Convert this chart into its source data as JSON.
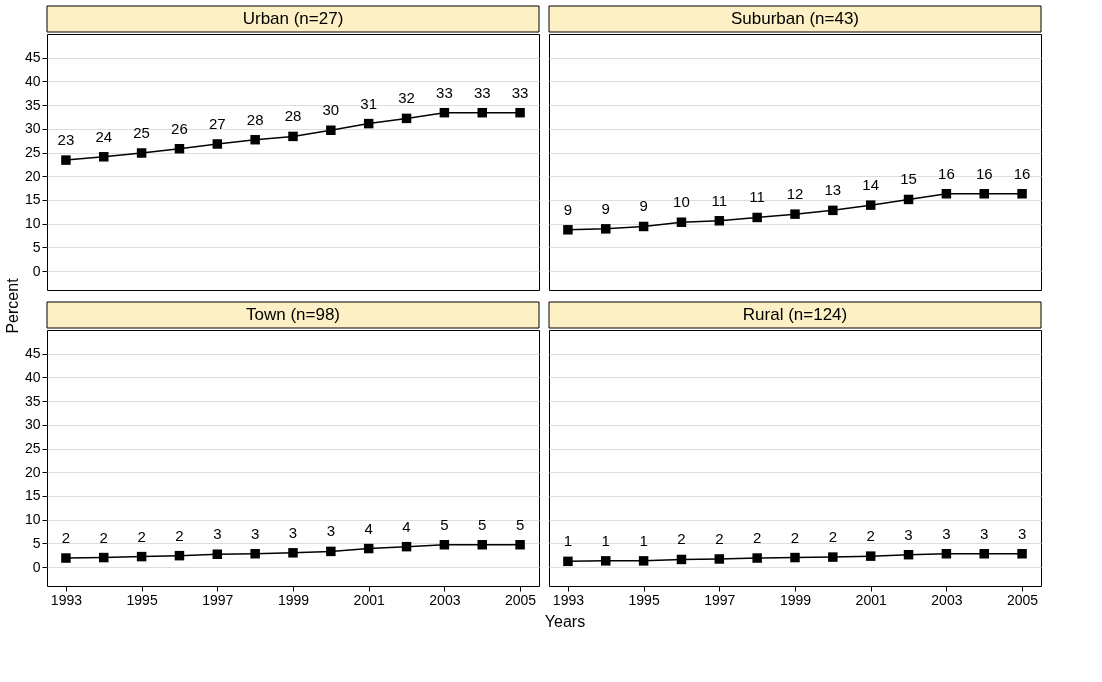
{
  "chart_data": [
    {
      "type": "line",
      "title": "Urban (n=27)",
      "ylabel": "Percent",
      "x": [
        1993,
        1994,
        1995,
        1996,
        1997,
        1998,
        1999,
        2000,
        2001,
        2002,
        2003,
        2004,
        2005
      ],
      "values": [
        23.4,
        24.1,
        24.9,
        25.8,
        26.8,
        27.7,
        28.4,
        29.7,
        31.1,
        32.2,
        33.4,
        33.4,
        33.4
      ],
      "value_labels": [
        "23",
        "24",
        "25",
        "26",
        "27",
        "28",
        "28",
        "30",
        "31",
        "32",
        "33",
        "33",
        "33"
      ],
      "color": "#000000",
      "marker": "square",
      "xlim": [
        1992.5,
        2005.5
      ],
      "ylim": [
        -4,
        50
      ],
      "xticks": [
        1993,
        1995,
        1997,
        1999,
        2001,
        2003,
        2005
      ],
      "yticks": [
        0,
        5,
        10,
        15,
        20,
        25,
        30,
        35,
        40,
        45
      ],
      "grid": "y",
      "tick_labels": "y"
    },
    {
      "type": "line",
      "title": "Suburban (n=43)",
      "x": [
        1993,
        1994,
        1995,
        1996,
        1997,
        1998,
        1999,
        2000,
        2001,
        2002,
        2003,
        2004,
        2005
      ],
      "values": [
        8.7,
        8.9,
        9.4,
        10.3,
        10.6,
        11.3,
        12.0,
        12.8,
        13.9,
        15.1,
        16.3,
        16.3,
        16.3
      ],
      "value_labels": [
        "9",
        "9",
        "9",
        "10",
        "11",
        "11",
        "12",
        "13",
        "14",
        "15",
        "16",
        "16",
        "16"
      ],
      "color": "#000000",
      "marker": "square",
      "xlim": [
        1992.5,
        2005.5
      ],
      "ylim": [
        -4,
        50
      ],
      "xticks": [
        1993,
        1995,
        1997,
        1999,
        2001,
        2003,
        2005
      ],
      "yticks": [
        0,
        5,
        10,
        15,
        20,
        25,
        30,
        35,
        40,
        45
      ],
      "grid": "y",
      "tick_labels": false
    },
    {
      "type": "line",
      "title": "Town (n=98)",
      "xlabel": "Years",
      "x": [
        1993,
        1994,
        1995,
        1996,
        1997,
        1998,
        1999,
        2000,
        2001,
        2002,
        2003,
        2004,
        2005
      ],
      "values": [
        1.9,
        2.0,
        2.2,
        2.4,
        2.7,
        2.8,
        3.0,
        3.3,
        3.9,
        4.3,
        4.7,
        4.7,
        4.7
      ],
      "value_labels": [
        "2",
        "2",
        "2",
        "2",
        "3",
        "3",
        "3",
        "3",
        "4",
        "4",
        "5",
        "5",
        "5"
      ],
      "color": "#000000",
      "marker": "square",
      "xlim": [
        1992.5,
        2005.5
      ],
      "ylim": [
        -4,
        50
      ],
      "xticks": [
        1993,
        1995,
        1997,
        1999,
        2001,
        2003,
        2005
      ],
      "yticks": [
        0,
        5,
        10,
        15,
        20,
        25,
        30,
        35,
        40,
        45
      ],
      "grid": "y"
    },
    {
      "type": "line",
      "title": "Rural (n=124)",
      "x": [
        1993,
        1994,
        1995,
        1996,
        1997,
        1998,
        1999,
        2000,
        2001,
        2002,
        2003,
        2004,
        2005
      ],
      "values": [
        1.2,
        1.3,
        1.3,
        1.6,
        1.7,
        1.9,
        2.0,
        2.1,
        2.3,
        2.6,
        2.8,
        2.8,
        2.8
      ],
      "value_labels": [
        "1",
        "1",
        "1",
        "2",
        "2",
        "2",
        "2",
        "2",
        "2",
        "3",
        "3",
        "3",
        "3"
      ],
      "color": "#000000",
      "marker": "square",
      "xlim": [
        1992.5,
        2005.5
      ],
      "ylim": [
        -4,
        50
      ],
      "xticks": [
        1993,
        1995,
        1997,
        1999,
        2001,
        2003,
        2005
      ],
      "yticks": [
        0,
        5,
        10,
        15,
        20,
        25,
        30,
        35,
        40,
        45
      ],
      "grid": "y",
      "tick_labels": "x"
    }
  ]
}
